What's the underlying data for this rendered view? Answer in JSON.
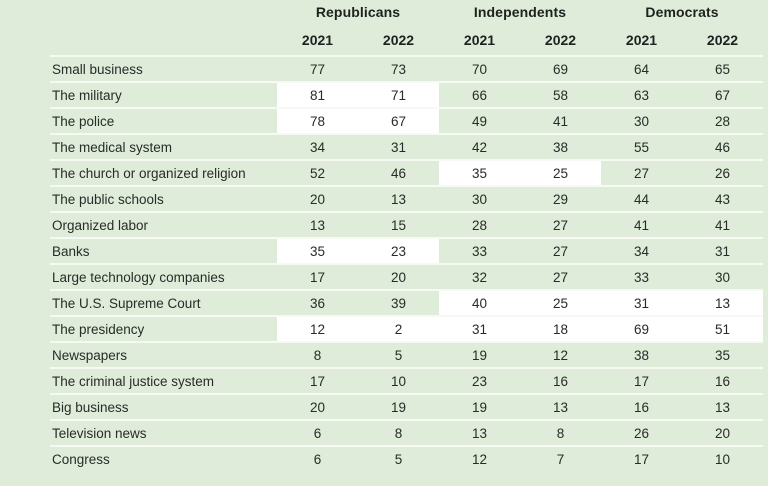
{
  "colors": {
    "background": "#dfecd9",
    "highlight": "#ffffff",
    "separator": "#f6faf2",
    "text": "#272b29",
    "header_text": "#1d2220"
  },
  "chart_data": {
    "type": "table",
    "column_groups": [
      {
        "label": "Republicans"
      },
      {
        "label": "Independents"
      },
      {
        "label": "Democrats"
      }
    ],
    "year_columns": [
      "2021",
      "2022",
      "2021",
      "2022",
      "2021",
      "2022"
    ],
    "rows": [
      {
        "label": "Small business",
        "values": [
          77,
          73,
          70,
          69,
          64,
          65
        ],
        "highlight_cols": []
      },
      {
        "label": "The military",
        "values": [
          81,
          71,
          66,
          58,
          63,
          67
        ],
        "highlight_cols": [
          0,
          1
        ]
      },
      {
        "label": "The police",
        "values": [
          78,
          67,
          49,
          41,
          30,
          28
        ],
        "highlight_cols": [
          0,
          1
        ]
      },
      {
        "label": "The medical system",
        "values": [
          34,
          31,
          42,
          38,
          55,
          46
        ],
        "highlight_cols": []
      },
      {
        "label": "The church or organized religion",
        "values": [
          52,
          46,
          35,
          25,
          27,
          26
        ],
        "highlight_cols": [
          2,
          3
        ]
      },
      {
        "label": "The public schools",
        "values": [
          20,
          13,
          30,
          29,
          44,
          43
        ],
        "highlight_cols": []
      },
      {
        "label": "Organized labor",
        "values": [
          13,
          15,
          28,
          27,
          41,
          41
        ],
        "highlight_cols": []
      },
      {
        "label": "Banks",
        "values": [
          35,
          23,
          33,
          27,
          34,
          31
        ],
        "highlight_cols": [
          0,
          1
        ]
      },
      {
        "label": "Large technology companies",
        "values": [
          17,
          20,
          32,
          27,
          33,
          30
        ],
        "highlight_cols": []
      },
      {
        "label": "The U.S. Supreme Court",
        "values": [
          36,
          39,
          40,
          25,
          31,
          13
        ],
        "highlight_cols": [
          2,
          3,
          4,
          5
        ]
      },
      {
        "label": "The presidency",
        "values": [
          12,
          2,
          31,
          18,
          69,
          51
        ],
        "highlight_cols": [
          0,
          1,
          2,
          3,
          4,
          5
        ]
      },
      {
        "label": "Newspapers",
        "values": [
          8,
          5,
          19,
          12,
          38,
          35
        ],
        "highlight_cols": []
      },
      {
        "label": "The criminal justice system",
        "values": [
          17,
          10,
          23,
          16,
          17,
          16
        ],
        "highlight_cols": []
      },
      {
        "label": "Big business",
        "values": [
          20,
          19,
          19,
          13,
          16,
          13
        ],
        "highlight_cols": []
      },
      {
        "label": "Television news",
        "values": [
          6,
          8,
          13,
          8,
          26,
          20
        ],
        "highlight_cols": []
      },
      {
        "label": "Congress",
        "values": [
          6,
          5,
          12,
          7,
          17,
          10
        ],
        "highlight_cols": []
      }
    ]
  }
}
